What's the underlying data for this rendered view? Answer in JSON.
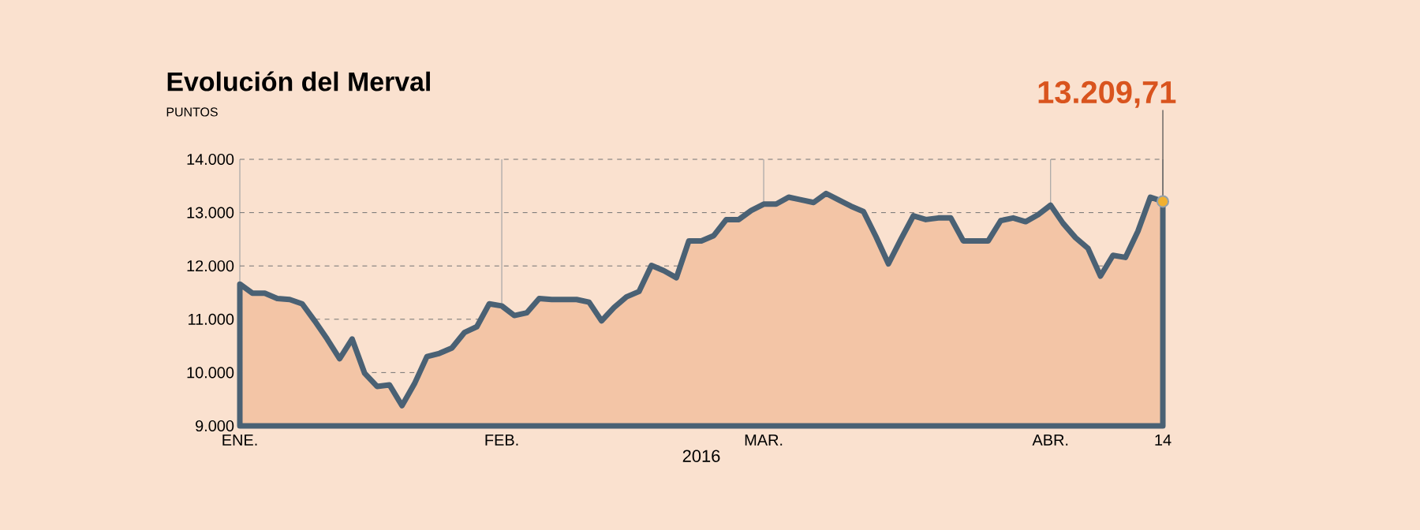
{
  "chart_data": {
    "type": "area",
    "title": "Evolución del Merval",
    "ylabel": "PUNTOS",
    "xlabel": "2016",
    "categories": [
      "ENE.",
      null,
      null,
      null,
      null,
      null,
      null,
      null,
      null,
      null,
      null,
      null,
      null,
      null,
      null,
      null,
      null,
      null,
      null,
      null,
      null,
      "FEB.",
      null,
      null,
      null,
      null,
      null,
      null,
      null,
      null,
      null,
      null,
      null,
      null,
      null,
      null,
      null,
      null,
      null,
      null,
      null,
      null,
      "MAR.",
      null,
      null,
      null,
      null,
      null,
      null,
      null,
      null,
      null,
      null,
      null,
      null,
      null,
      null,
      null,
      null,
      null,
      null,
      null,
      null,
      null,
      null,
      "ABR.",
      null,
      null,
      null,
      null,
      null,
      null,
      null,
      null,
      "14"
    ],
    "series": [
      {
        "color": "#f3c5a6",
        "values": [
          11660,
          11490,
          11490,
          11390,
          11370,
          11290,
          10970,
          10630,
          10260,
          10630,
          9990,
          9740,
          9770,
          9380,
          9790,
          10300,
          10360,
          10460,
          10750,
          10860,
          11290,
          11250,
          11070,
          11120,
          11390,
          11370,
          11370,
          11370,
          11320,
          10970,
          11220,
          11420,
          11520,
          12010,
          11910,
          11780,
          12470,
          12470,
          12570,
          12870,
          12870,
          13040,
          13160,
          13160,
          13290,
          13240,
          13190,
          13360,
          13240,
          13120,
          13020,
          12550,
          12040,
          12500,
          12940,
          12870,
          12900,
          12900,
          12470,
          12470,
          12470,
          12850,
          12900,
          12830,
          12960,
          13140,
          12800,
          12530,
          12330,
          11810,
          12200,
          12160,
          12650,
          13290,
          13209.71
        ]
      }
    ],
    "ylim": [
      9000,
      14000
    ],
    "yticks": [
      {
        "value": 9000,
        "label": "9.000"
      },
      {
        "value": 10000,
        "label": "10.000"
      },
      {
        "value": 11000,
        "label": "11.000"
      },
      {
        "value": 12000,
        "label": "12.000"
      },
      {
        "value": 13000,
        "label": "13.000"
      },
      {
        "value": 14000,
        "label": "14.000"
      }
    ],
    "grid": true,
    "annotations": [
      {
        "text": "13.209,71",
        "x": "14",
        "y": 13209.71
      }
    ]
  }
}
